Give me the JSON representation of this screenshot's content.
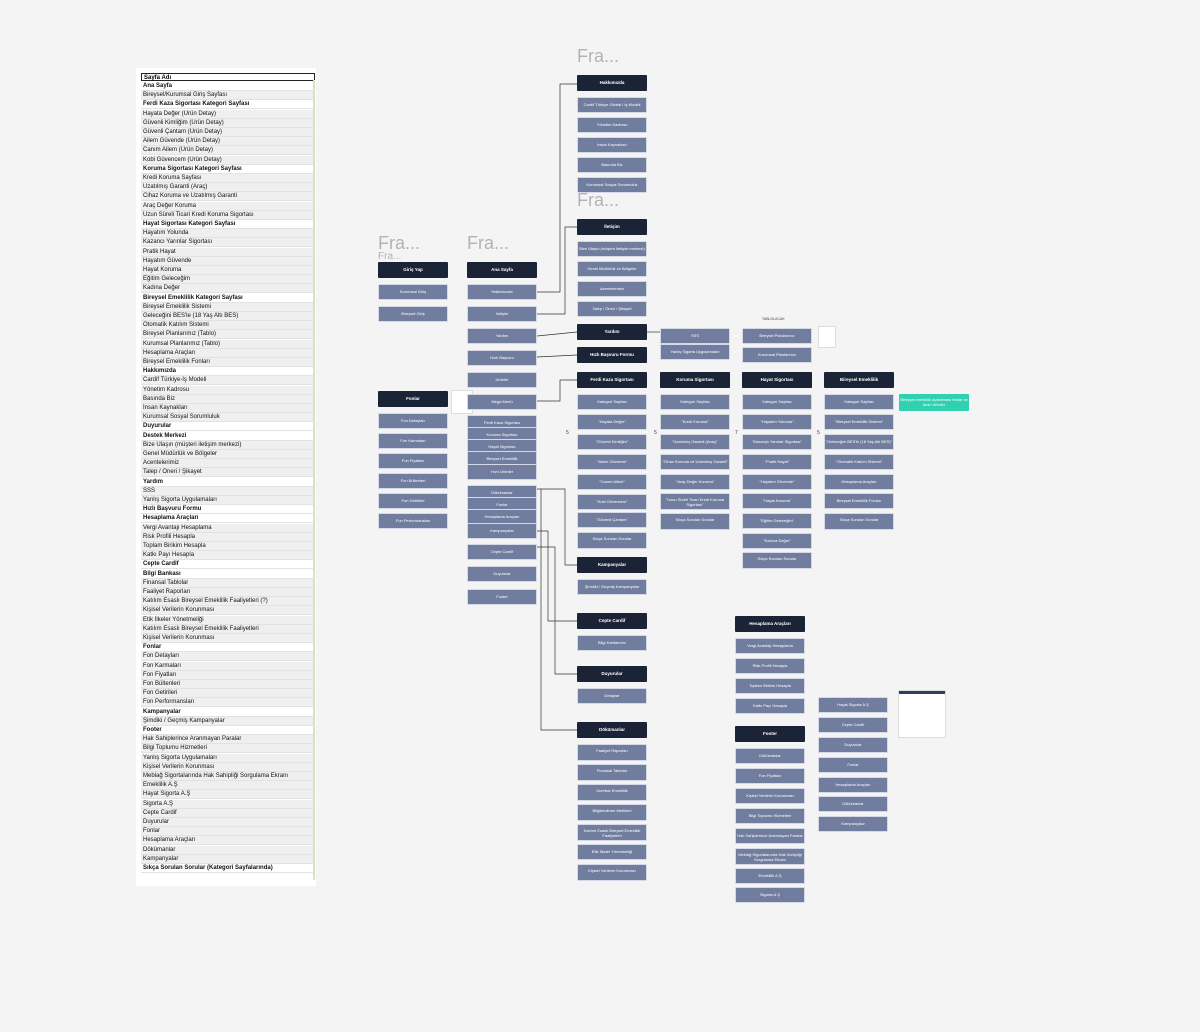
{
  "sheet": {
    "header": "Sayfa Adı",
    "rows": [
      {
        "label": "Ana Sayfa",
        "type": "s"
      },
      {
        "label": "Bireysel/Kurumsal Giriş Sayfası",
        "type": "n"
      },
      {
        "label": "Ferdi Kaza Sigortası Kategori Sayfası",
        "type": "s"
      },
      {
        "label": "Hayata Değer (Ürün Detay)",
        "type": "n"
      },
      {
        "label": "Güvenli Kimliğim (Ürün Detay)",
        "type": "n"
      },
      {
        "label": "Güvenli Çantam (Ürün Detay)",
        "type": "n"
      },
      {
        "label": "Ailem Güvende (Ürün Detay)",
        "type": "n"
      },
      {
        "label": "Canım Ailem (Ürün Detay)",
        "type": "n"
      },
      {
        "label": "Kobi Güvencem (Ürün Detay)",
        "type": "n"
      },
      {
        "label": "Koruma Sigortası Kategori Sayfası",
        "type": "s"
      },
      {
        "label": "Kredi Koruma Sayfası",
        "type": "n"
      },
      {
        "label": "Uzatılmış Garanti (Araç)",
        "type": "n"
      },
      {
        "label": "Cihaz Koruma ve Uzatılmış Garanti",
        "type": "n"
      },
      {
        "label": "Araç Değer Koruma",
        "type": "n"
      },
      {
        "label": "Uzun Süreli Ticari Kredi Koruma Sigortası",
        "type": "n"
      },
      {
        "label": "Hayat Sigortası Kategori Sayfası",
        "type": "s"
      },
      {
        "label": "Hayatım Yolunda",
        "type": "n"
      },
      {
        "label": "Kazancı Yarınlar Sigortası",
        "type": "n"
      },
      {
        "label": "Pratik Hayat",
        "type": "n"
      },
      {
        "label": "Hayatım Güvende",
        "type": "n"
      },
      {
        "label": "Hayat Koruma",
        "type": "n"
      },
      {
        "label": "Eğitim Geleceğim",
        "type": "n"
      },
      {
        "label": "Kadına Değer",
        "type": "n"
      },
      {
        "label": "Bireysel Emeklilik Kategori Sayfası",
        "type": "s"
      },
      {
        "label": "Bireysel Emeklilik Sistemi",
        "type": "n"
      },
      {
        "label": "Geleceğini BES'le (18 Yaş Altı BES)",
        "type": "n"
      },
      {
        "label": "Otomatik Katılım Sistemi",
        "type": "n"
      },
      {
        "label": "Bireysel Planlarımız (Tablo)",
        "type": "n"
      },
      {
        "label": "Kurumsal Planlarımız (Tablo)",
        "type": "n"
      },
      {
        "label": "Hesaplama Araçları",
        "type": "n"
      },
      {
        "label": "Bireysel Emeklilik Fonları",
        "type": "n"
      },
      {
        "label": "Hakkımızda",
        "type": "s"
      },
      {
        "label": "Cardif Türkiye-İş Modeli",
        "type": "n"
      },
      {
        "label": "Yönetim Kadrosu",
        "type": "n"
      },
      {
        "label": "Basında Biz",
        "type": "n"
      },
      {
        "label": "İnsan Kaynakları",
        "type": "n"
      },
      {
        "label": "Kurumsal Sosyal Sorumluluk",
        "type": "n"
      },
      {
        "label": "Duyurular",
        "type": "s"
      },
      {
        "label": "Destek Merkezi",
        "type": "s"
      },
      {
        "label": "Bize Ulaşın (müşteri iletişim merkezi)",
        "type": "n"
      },
      {
        "label": "Genel Müdürlük ve Bölgeler",
        "type": "n"
      },
      {
        "label": "Acentelerimiz",
        "type": "n"
      },
      {
        "label": "Talep / Öneri / Şikayet",
        "type": "n"
      },
      {
        "label": "Yardım",
        "type": "s"
      },
      {
        "label": "SSS",
        "type": "n"
      },
      {
        "label": "Yanlış Sigorta Uygulamaları",
        "type": "n"
      },
      {
        "label": "Hızlı Başvuru Formu",
        "type": "s"
      },
      {
        "label": "Hesaplama Araçları",
        "type": "s"
      },
      {
        "label": "Vergi Avantajı Hesaplama",
        "type": "n"
      },
      {
        "label": "Risk Profili Hesapla",
        "type": "n"
      },
      {
        "label": "Toplam Birikim Hesapla",
        "type": "n"
      },
      {
        "label": "Katkı Payı Hesapla",
        "type": "n"
      },
      {
        "label": "Cepte Cardif",
        "type": "s"
      },
      {
        "label": "Bilgi Bankası",
        "type": "s"
      },
      {
        "label": "Finansal Tablolar",
        "type": "n"
      },
      {
        "label": "Faaliyet Raporları",
        "type": "n"
      },
      {
        "label": "Katılım Esaslı Bireysel Emeklilik Faaliyetleri (?)",
        "type": "n"
      },
      {
        "label": "Kişisel Verilerin Korunması",
        "type": "n"
      },
      {
        "label": "Etik İlkeler Yönetmeliği",
        "type": "n"
      },
      {
        "label": "Katılım Esaslı Bireysel Emeklilik Faaliyetleri",
        "type": "n"
      },
      {
        "label": "Kişisel Verilerin Korunması",
        "type": "n"
      },
      {
        "label": "Fonlar",
        "type": "s"
      },
      {
        "label": "Fon Detayları",
        "type": "n"
      },
      {
        "label": "Fon Karmaları",
        "type": "n"
      },
      {
        "label": "Fon Fiyatları",
        "type": "n"
      },
      {
        "label": "Fon Bültenleri",
        "type": "n"
      },
      {
        "label": "Fon Getirileri",
        "type": "n"
      },
      {
        "label": "Fon Performansları",
        "type": "n"
      },
      {
        "label": "Kampanyalar",
        "type": "s"
      },
      {
        "label": "Şimdiki / Geçmiş Kampanyalar",
        "type": "n"
      },
      {
        "label": "Footer",
        "type": "s"
      },
      {
        "label": "Hak Sahiplerince Aranmayan Paralar",
        "type": "n"
      },
      {
        "label": "Bilgi Toplumu Hizmetleri",
        "type": "n"
      },
      {
        "label": "Yanlış Sigorta Uygulamaları",
        "type": "n"
      },
      {
        "label": "Kişisel Verilerin Korunması",
        "type": "n"
      },
      {
        "label": "Meblağ Sigortalarında Hak Sahipliği Sorgulama Ekranı",
        "type": "n"
      },
      {
        "label": "Emeklilik A.Ş",
        "type": "n"
      },
      {
        "label": "Hayat Sigorta A.Ş",
        "type": "n"
      },
      {
        "label": "Sigorta A.Ş",
        "type": "n"
      },
      {
        "label": "Cepte Cardif",
        "type": "n"
      },
      {
        "label": "Duyurular",
        "type": "n"
      },
      {
        "label": "Fonlar",
        "type": "n"
      },
      {
        "label": "Hesaplama Araçları",
        "type": "n"
      },
      {
        "label": "Dökümanlar",
        "type": "n"
      },
      {
        "label": "Kampanyalar",
        "type": "n"
      },
      {
        "label": "Sıkça Sorulan Sorular (Kategori Sayfalarında)",
        "type": "s"
      }
    ]
  },
  "frame_titles": [
    "Fra...",
    "Fra...",
    "Fra...",
    "Fra...",
    "Fra..."
  ],
  "labels": {
    "tablo": "TABLOLACAK",
    "num5a": "5",
    "num5b": "5",
    "num7": "7",
    "num5c": "5"
  },
  "colors": {
    "dark": "#1b2436",
    "light": "#717d9e",
    "teal": "#2fd1b1"
  },
  "nodes": [
    {
      "id": "hakkimizda",
      "text": "Hakkımızda",
      "type": "d"
    },
    {
      "id": "hk1",
      "text": "Cardif Türkiye Global / İş Modeli",
      "type": "l"
    },
    {
      "id": "hk2",
      "text": "Yönetim Kadrosu",
      "type": "l"
    },
    {
      "id": "hk3",
      "text": "İnsan Kaynakları",
      "type": "l"
    },
    {
      "id": "hk4",
      "text": "Basında Biz",
      "type": "l"
    },
    {
      "id": "hk5",
      "text": "Kurumsal Sosyal Sorumluluk",
      "type": "l"
    },
    {
      "id": "iletisim",
      "text": "İletişim",
      "type": "d"
    },
    {
      "id": "il1",
      "text": "Bize Ulaşın (müşteri iletişim merkezi)",
      "type": "l"
    },
    {
      "id": "il2",
      "text": "Genel Müdürlük ve Bölgeler",
      "type": "l"
    },
    {
      "id": "il3",
      "text": "Acentelerimiz",
      "type": "l"
    },
    {
      "id": "il4",
      "text": "Talep / Öneri / Şikayet",
      "type": "l"
    },
    {
      "id": "giris",
      "text": "Giriş Yap",
      "type": "d"
    },
    {
      "id": "gr1",
      "text": "Kurumsal Giriş",
      "type": "l"
    },
    {
      "id": "gr2",
      "text": "Bireysel Giriş",
      "type": "l"
    },
    {
      "id": "anasayfa",
      "text": "Ana Sayfa",
      "type": "d"
    },
    {
      "id": "as1",
      "text": "Hakkımızda",
      "type": "l"
    },
    {
      "id": "as2",
      "text": "İletişim",
      "type": "l"
    },
    {
      "id": "as3",
      "text": "Yardım",
      "type": "l"
    },
    {
      "id": "as4",
      "text": "Hızlı Başvuru",
      "type": "l"
    },
    {
      "id": "as5",
      "text": "Ürünler",
      "type": "l"
    },
    {
      "id": "as6",
      "text": "Mega Menü",
      "type": "l"
    },
    {
      "id": "mm1",
      "text": "Ferdi Kaza Sigortası",
      "type": "l"
    },
    {
      "id": "mm2",
      "text": "Koruma Sigortası",
      "type": "l"
    },
    {
      "id": "mm3",
      "text": "Hayat Sigortası",
      "type": "l"
    },
    {
      "id": "mm4",
      "text": "Bireysel Emeklilik",
      "type": "l"
    },
    {
      "id": "as7",
      "text": "Hızlı Ürünler",
      "type": "l"
    },
    {
      "id": "mm5",
      "text": "Dökümanlar",
      "type": "l"
    },
    {
      "id": "mm6",
      "text": "Fonlar",
      "type": "l"
    },
    {
      "id": "mm7",
      "text": "Hesaplama Araçları",
      "type": "l"
    },
    {
      "id": "as8",
      "text": "Kampanyalar",
      "type": "l"
    },
    {
      "id": "as9",
      "text": "Cepte Cardif",
      "type": "l"
    },
    {
      "id": "as10",
      "text": "Duyurular",
      "type": "l"
    },
    {
      "id": "as11",
      "text": "Footer",
      "type": "l"
    },
    {
      "id": "fonlar",
      "text": "Fonlar",
      "type": "d"
    },
    {
      "id": "fn1",
      "text": "Fon Detayları",
      "type": "l"
    },
    {
      "id": "fn2",
      "text": "Fon Karmaları",
      "type": "l"
    },
    {
      "id": "fn3",
      "text": "Fon Fiyatları",
      "type": "l"
    },
    {
      "id": "fn4",
      "text": "Fon Bültenleri",
      "type": "l"
    },
    {
      "id": "fn5",
      "text": "Fon Getirileri",
      "type": "l"
    },
    {
      "id": "fn6",
      "text": "Fon Performansları",
      "type": "l"
    },
    {
      "id": "yardim",
      "text": "Yardım",
      "type": "d"
    },
    {
      "id": "hizli",
      "text": "Hızlı Başvuru Formu",
      "type": "d"
    },
    {
      "id": "yd1",
      "text": "SSS",
      "type": "l"
    },
    {
      "id": "yd2",
      "text": "Yanlış Sigorta Uygulamaları",
      "type": "l"
    },
    {
      "id": "ferdi",
      "text": "Ferdi Kaza Sigortası",
      "type": "d"
    },
    {
      "id": "fk1",
      "text": "Kategori Sayfası",
      "type": "l"
    },
    {
      "id": "fk2",
      "text": "\"Hayata Değer\"",
      "type": "l"
    },
    {
      "id": "fk3",
      "text": "\"Güvenli Kimliğim\"",
      "type": "l"
    },
    {
      "id": "fk4",
      "text": "\"Ailem Güvende\"",
      "type": "l"
    },
    {
      "id": "fk5",
      "text": "\"Canım Ailem\"",
      "type": "l"
    },
    {
      "id": "fk6",
      "text": "\"Kobi Güvencem\"",
      "type": "l"
    },
    {
      "id": "fk7",
      "text": "\"Güvenli Çantam\"",
      "type": "l"
    },
    {
      "id": "fk8",
      "text": "Sıkça Sorulan Sorular",
      "type": "l"
    },
    {
      "id": "koruma",
      "text": "Koruma Sigortası",
      "type": "d"
    },
    {
      "id": "ko1",
      "text": "Kategori Sayfası",
      "type": "l"
    },
    {
      "id": "ko2",
      "text": "\"Kredi Koruma\"",
      "type": "l"
    },
    {
      "id": "ko3",
      "text": "\"Uzatılmış Garanti (Araç)\"",
      "type": "l"
    },
    {
      "id": "ko4",
      "text": "\"Cihaz Koruma ve Uzatılmış Garanti\"",
      "type": "l"
    },
    {
      "id": "ko5",
      "text": "\"Araç Değer Koruma\"",
      "type": "l"
    },
    {
      "id": "ko6",
      "text": "\"Uzun Süreli Ticari Kredi Koruma Sigortası\"",
      "type": "l"
    },
    {
      "id": "ko7",
      "text": "Sıkça Sorulan Sorular",
      "type": "l"
    },
    {
      "id": "hayat",
      "text": "Hayat Sigortası",
      "type": "d"
    },
    {
      "id": "hy0a",
      "text": "Bireysel Planlarımız",
      "type": "l"
    },
    {
      "id": "hy0b",
      "text": "Kurumsal Planlarımız",
      "type": "l"
    },
    {
      "id": "hy1",
      "text": "Kategori Sayfası",
      "type": "l"
    },
    {
      "id": "hy2",
      "text": "\"Hayatım Yolunda\"",
      "type": "l"
    },
    {
      "id": "hy3",
      "text": "\"Kazançlı Yarınlar Sigortası\"",
      "type": "l"
    },
    {
      "id": "hy4",
      "text": "\"Pratik Hayat\"",
      "type": "l"
    },
    {
      "id": "hy5",
      "text": "\"Hayatım Güvende\"",
      "type": "l"
    },
    {
      "id": "hy6",
      "text": "\"Hayat Koruma\"",
      "type": "l"
    },
    {
      "id": "hy7",
      "text": "\"Eğitim Geleceğim\"",
      "type": "l"
    },
    {
      "id": "hy8",
      "text": "\"Kadına Değer\"",
      "type": "l"
    },
    {
      "id": "hy9",
      "text": "Sıkça Sorulan Sorular",
      "type": "l"
    },
    {
      "id": "bes",
      "text": "Bireysel Emeklilik",
      "type": "d"
    },
    {
      "id": "be1",
      "text": "Kategori Sayfası",
      "type": "l"
    },
    {
      "id": "be2",
      "text": "\"Bireysel Emeklilik Sistemi\"",
      "type": "l"
    },
    {
      "id": "be3",
      "text": "\"Geleceğini BES'le (18 Yaş Altı BES)\"",
      "type": "l"
    },
    {
      "id": "be4",
      "text": "\"Otomatik Katılım Sistemi\"",
      "type": "l"
    },
    {
      "id": "be5",
      "text": "Hesaplama Araçları",
      "type": "l"
    },
    {
      "id": "be6",
      "text": "Bireysel Emeklilik Fonları",
      "type": "l"
    },
    {
      "id": "be7",
      "text": "Sıkça Sorulan Sorular",
      "type": "l"
    },
    {
      "id": "teal",
      "text": "Bireysel emeklilik açıklaması fonlar ve fonlu ürünler",
      "type": "t"
    },
    {
      "id": "kampanyalar",
      "text": "Kampanyalar",
      "type": "d"
    },
    {
      "id": "ka1",
      "text": "Şimdiki / Geçmiş Kampanyalar",
      "type": "l"
    },
    {
      "id": "cepte",
      "text": "Cepte Cardif",
      "type": "d"
    },
    {
      "id": "ce1",
      "text": "Bilgi Kartlarımız",
      "type": "l"
    },
    {
      "id": "duyurular",
      "text": "Duyurular",
      "type": "d"
    },
    {
      "id": "du1",
      "text": "Detaylar",
      "type": "l"
    },
    {
      "id": "dokumanlar",
      "text": "Dökümanlar",
      "type": "d"
    },
    {
      "id": "do1",
      "text": "Faaliyet Raporları",
      "type": "l"
    },
    {
      "id": "do2",
      "text": "Finansal Tablolar",
      "type": "l"
    },
    {
      "id": "do3",
      "text": "Ücretsiz Emeklilik",
      "type": "l"
    },
    {
      "id": "do4",
      "text": "Bilgilendirme Metinleri",
      "type": "l"
    },
    {
      "id": "do5",
      "text": "Katılım Esaslı Bireysel Emeklilik Faaliyetleri",
      "type": "l"
    },
    {
      "id": "do6",
      "text": "Etik İlkeler Yönetmeliği",
      "type": "l"
    },
    {
      "id": "do7",
      "text": "Kişisel Verilerin Korunması",
      "type": "l"
    },
    {
      "id": "hesaplama",
      "text": "Hesaplama Araçları",
      "type": "d"
    },
    {
      "id": "he1",
      "text": "Vergi Avantajı Hesaplama",
      "type": "l"
    },
    {
      "id": "he2",
      "text": "Risk Profili Hesapla",
      "type": "l"
    },
    {
      "id": "he3",
      "text": "Toplam Birikim Hesapla",
      "type": "l"
    },
    {
      "id": "he4",
      "text": "Katkı Payı Hesapla",
      "type": "l"
    },
    {
      "id": "footer",
      "text": "Footer",
      "type": "d"
    },
    {
      "id": "fo1",
      "text": "Dökümanlar",
      "type": "l"
    },
    {
      "id": "fo2",
      "text": "Fon Fiyatları",
      "type": "l"
    },
    {
      "id": "fo3",
      "text": "Kişisel Verilerin Korunması",
      "type": "l"
    },
    {
      "id": "fo4",
      "text": "Bilgi Toplumu Hizmetleri",
      "type": "l"
    },
    {
      "id": "fo5",
      "text": "Hak Sahiplerince Aranmayan Paralar",
      "type": "l"
    },
    {
      "id": "fo6",
      "text": "Meblağ Sigortalarında Hak Sahipliği Sorgulama Ekranı",
      "type": "l"
    },
    {
      "id": "fo7",
      "text": "Emeklilik A.Ş",
      "type": "l"
    },
    {
      "id": "fo8",
      "text": "Sigorta A.Ş",
      "type": "l"
    },
    {
      "id": "ft1",
      "text": "Hayat Sigorta A.Ş",
      "type": "l"
    },
    {
      "id": "ft2",
      "text": "Cepte Cardif",
      "type": "l"
    },
    {
      "id": "ft3",
      "text": "Duyurular",
      "type": "l"
    },
    {
      "id": "ft4",
      "text": "Fonlar",
      "type": "l"
    },
    {
      "id": "ft5",
      "text": "Hesaplama Araçları",
      "type": "l"
    },
    {
      "id": "ft6",
      "text": "Dökümanlar",
      "type": "l"
    },
    {
      "id": "ft7",
      "text": "Kampanyalar",
      "type": "l"
    }
  ]
}
